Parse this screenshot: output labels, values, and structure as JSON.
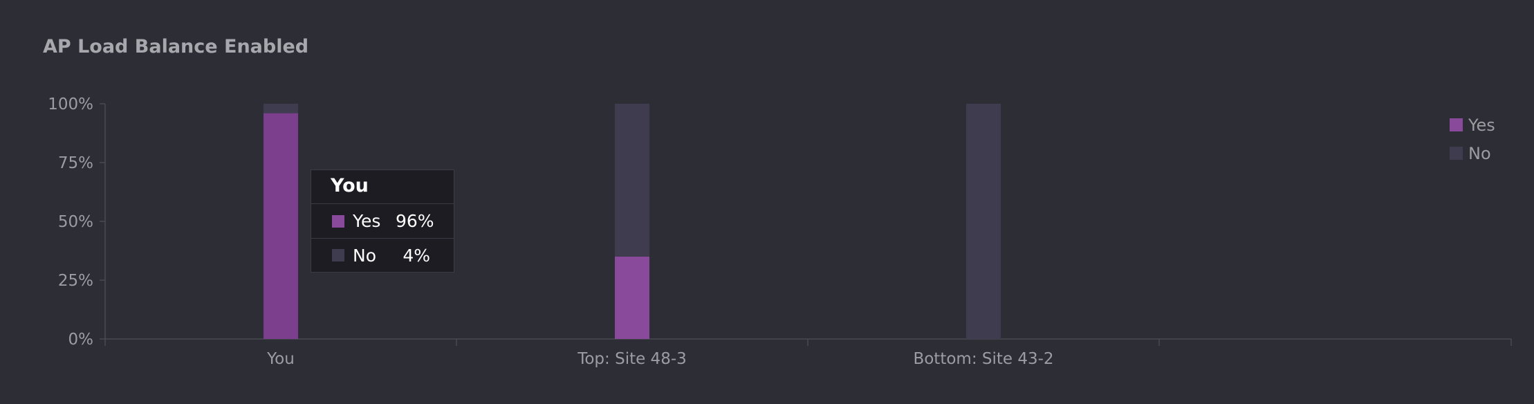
{
  "chart_data": {
    "type": "bar",
    "stacked": true,
    "title": "AP Load Balance Enabled",
    "xlabel": "",
    "ylabel": "",
    "categories": [
      "You",
      "Top: Site 48-3",
      "Bottom: Site 43-2"
    ],
    "series": [
      {
        "name": "Yes",
        "color": "#7b3f8e",
        "values": [
          96,
          35,
          0
        ]
      },
      {
        "name": "No",
        "color": "#3f3c50",
        "values": [
          4,
          65,
          100
        ]
      }
    ],
    "ylim": [
      0,
      100
    ],
    "yticks": [
      "0%",
      "25%",
      "50%",
      "75%",
      "100%"
    ],
    "grid": false,
    "legend": "top-right"
  },
  "tooltip": {
    "title": "You",
    "rows": [
      {
        "label": "Yes",
        "value": "96%",
        "color": "#8a4a9c"
      },
      {
        "label": "No",
        "value": "4%",
        "color": "#3f3c50"
      }
    ]
  },
  "legend": {
    "items": [
      {
        "label": "Yes",
        "color": "#8a4a9c"
      },
      {
        "label": "No",
        "color": "#3f3c50"
      }
    ]
  },
  "colors": {
    "background": "#2d2d35",
    "axis": "#4a4a52",
    "tick_text": "#9c9ca2",
    "yes_highlight": "#8a4a9c"
  }
}
